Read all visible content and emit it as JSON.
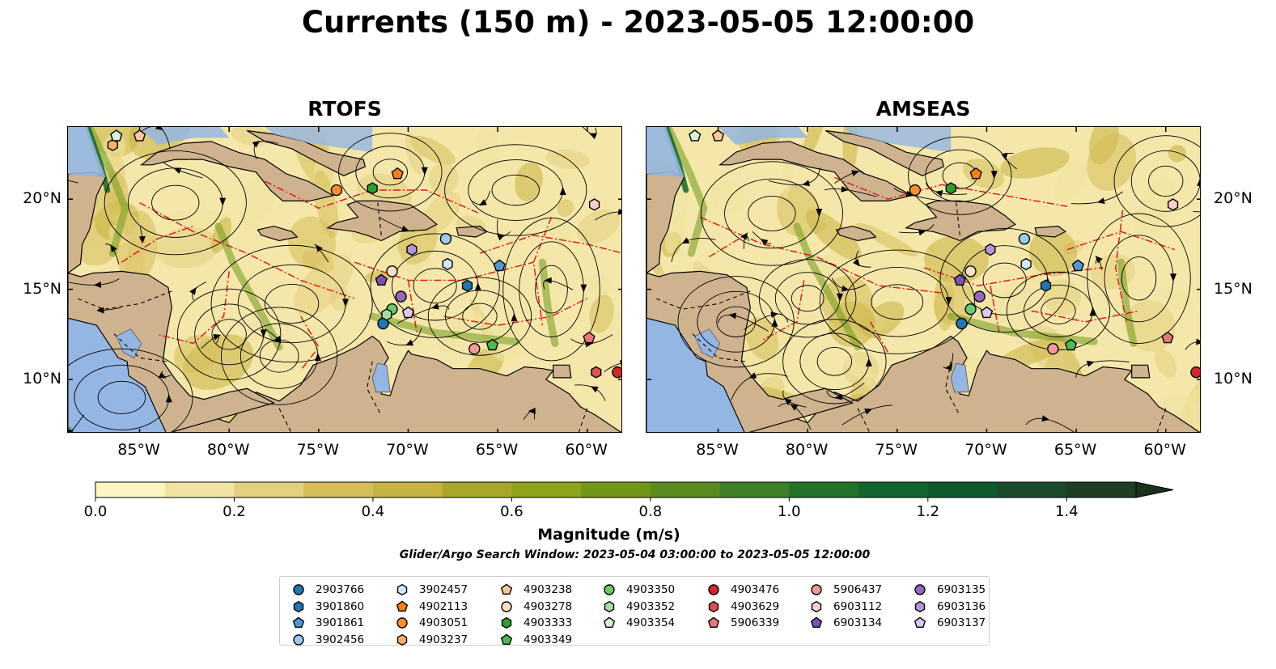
{
  "title": "Currents (150 m) - 2023-05-05 12:00:00",
  "panels": [
    {
      "name": "RTOFS"
    },
    {
      "name": "AMSEAS"
    }
  ],
  "axes": {
    "lon_ticks": [
      "85°W",
      "80°W",
      "75°W",
      "70°W",
      "65°W",
      "60°W"
    ],
    "lat_ticks": [
      "20°N",
      "15°N",
      "10°N"
    ],
    "lon_range": [
      -89,
      -58
    ],
    "lat_range": [
      7,
      24
    ]
  },
  "colorbar": {
    "label": "Magnitude (m/s)",
    "ticks": [
      "0.0",
      "0.2",
      "0.4",
      "0.6",
      "0.8",
      "1.0",
      "1.2",
      "1.4"
    ],
    "range": [
      0,
      1.5
    ],
    "extend": "max",
    "colors": [
      "#fdf6c3",
      "#f1e3a1",
      "#e3cf7d",
      "#d5bd5a",
      "#c6b341",
      "#a9a72b",
      "#8ea31b",
      "#72961a",
      "#5b8a1f",
      "#3f7f25",
      "#237229",
      "#13652e",
      "#0f5a2c",
      "#1a4a2a",
      "#1f3c24",
      "#1c2e1d"
    ]
  },
  "search_window": "Glider/Argo Search Window: 2023-05-04 03:00:00 to 2023-05-05 12:00:00",
  "legend": [
    {
      "id": "2903766",
      "color": "#1f77b4",
      "marker": "circle"
    },
    {
      "id": "3901860",
      "color": "#1f77b4",
      "marker": "hexagon"
    },
    {
      "id": "3901861",
      "color": "#4f9ad6",
      "marker": "pentagon"
    },
    {
      "id": "3902456",
      "color": "#9ecae9",
      "marker": "circle"
    },
    {
      "id": "3902457",
      "color": "#cfe8f7",
      "marker": "hexagon"
    },
    {
      "id": "4902113",
      "color": "#ff7f0e",
      "marker": "pentagon"
    },
    {
      "id": "4903051",
      "color": "#ff8c2e",
      "marker": "circle"
    },
    {
      "id": "4903237",
      "color": "#ffae66",
      "marker": "hexagon"
    },
    {
      "id": "4903238",
      "color": "#ffc898",
      "marker": "pentagon"
    },
    {
      "id": "4903278",
      "color": "#ffe0c2",
      "marker": "circle"
    },
    {
      "id": "4903333",
      "color": "#2ca02c",
      "marker": "hexagon"
    },
    {
      "id": "4903349",
      "color": "#4cbd4c",
      "marker": "pentagon"
    },
    {
      "id": "4903350",
      "color": "#6ccb6c",
      "marker": "circle"
    },
    {
      "id": "4903352",
      "color": "#a2e0a2",
      "marker": "hexagon"
    },
    {
      "id": "4903354",
      "color": "#d4f5d4",
      "marker": "pentagon"
    },
    {
      "id": "4903476",
      "color": "#d62728",
      "marker": "circle"
    },
    {
      "id": "4903629",
      "color": "#e05050",
      "marker": "hexagon"
    },
    {
      "id": "5906339",
      "color": "#e87878",
      "marker": "pentagon"
    },
    {
      "id": "5906437",
      "color": "#f29a9a",
      "marker": "circle"
    },
    {
      "id": "6903112",
      "color": "#fbd0d0",
      "marker": "hexagon"
    },
    {
      "id": "6903134",
      "color": "#7b52ae",
      "marker": "pentagon"
    },
    {
      "id": "6903135",
      "color": "#9467bd",
      "marker": "circle"
    },
    {
      "id": "6903136",
      "color": "#b494d6",
      "marker": "hexagon"
    },
    {
      "id": "6903137",
      "color": "#dbc7ef",
      "marker": "pentagon"
    }
  ],
  "chart_data": {
    "type": "heatmap",
    "title": "Currents (150 m) - 2023-05-05 12:00:00",
    "subplots": [
      "RTOFS",
      "AMSEAS"
    ],
    "variable": "Magnitude (m/s)",
    "xlabel": "",
    "ylabel": "",
    "xlim": [
      -89,
      -58
    ],
    "ylim": [
      7,
      24
    ],
    "floats": {
      "RTOFS": [
        {
          "id": "2903766",
          "lon": -71.4,
          "lat": 13.1
        },
        {
          "id": "3901860",
          "lon": -66.7,
          "lat": 15.2
        },
        {
          "id": "3901861",
          "lon": -64.9,
          "lat": 16.3
        },
        {
          "id": "3902456",
          "lon": -67.9,
          "lat": 17.8
        },
        {
          "id": "3902457",
          "lon": -67.8,
          "lat": 16.4
        },
        {
          "id": "4902113",
          "lon": -70.6,
          "lat": 21.4
        },
        {
          "id": "4903051",
          "lon": -74.0,
          "lat": 20.5
        },
        {
          "id": "4903237",
          "lon": -86.5,
          "lat": 23.0
        },
        {
          "id": "4903238",
          "lon": -85.0,
          "lat": 23.5
        },
        {
          "id": "4903278",
          "lon": -70.9,
          "lat": 16.0
        },
        {
          "id": "4903333",
          "lon": -72.0,
          "lat": 20.6
        },
        {
          "id": "4903349",
          "lon": -65.3,
          "lat": 11.9
        },
        {
          "id": "4903350",
          "lon": -70.9,
          "lat": 13.9
        },
        {
          "id": "4903352",
          "lon": -71.2,
          "lat": 13.6
        },
        {
          "id": "4903354",
          "lon": -86.3,
          "lat": 23.5
        },
        {
          "id": "4903476",
          "lon": -58.3,
          "lat": 10.4
        },
        {
          "id": "4903629",
          "lon": -59.5,
          "lat": 10.4
        },
        {
          "id": "5906339",
          "lon": -59.9,
          "lat": 12.3
        },
        {
          "id": "5906437",
          "lon": -66.3,
          "lat": 11.7
        },
        {
          "id": "6903112",
          "lon": -59.6,
          "lat": 19.7
        },
        {
          "id": "6903134",
          "lon": -71.5,
          "lat": 15.5
        },
        {
          "id": "6903135",
          "lon": -70.4,
          "lat": 14.6
        },
        {
          "id": "6903136",
          "lon": -69.8,
          "lat": 17.2
        },
        {
          "id": "6903137",
          "lon": -70.0,
          "lat": 13.7
        }
      ],
      "AMSEAS": [
        {
          "id": "2903766",
          "lon": -71.4,
          "lat": 13.1
        },
        {
          "id": "3901860",
          "lon": -66.7,
          "lat": 15.2
        },
        {
          "id": "3901861",
          "lon": -64.9,
          "lat": 16.3
        },
        {
          "id": "3902456",
          "lon": -67.9,
          "lat": 17.8
        },
        {
          "id": "3902457",
          "lon": -67.8,
          "lat": 16.4
        },
        {
          "id": "4902113",
          "lon": -70.6,
          "lat": 21.4
        },
        {
          "id": "4903051",
          "lon": -74.0,
          "lat": 20.5
        },
        {
          "id": "4903238",
          "lon": -85.0,
          "lat": 23.5
        },
        {
          "id": "4903278",
          "lon": -70.9,
          "lat": 16.0
        },
        {
          "id": "4903333",
          "lon": -72.0,
          "lat": 20.6
        },
        {
          "id": "4903349",
          "lon": -65.3,
          "lat": 11.9
        },
        {
          "id": "4903350",
          "lon": -70.9,
          "lat": 13.9
        },
        {
          "id": "4903354",
          "lon": -86.3,
          "lat": 23.5
        },
        {
          "id": "4903476",
          "lon": -58.3,
          "lat": 10.4
        },
        {
          "id": "5906339",
          "lon": -59.9,
          "lat": 12.3
        },
        {
          "id": "5906437",
          "lon": -66.3,
          "lat": 11.7
        },
        {
          "id": "6903112",
          "lon": -59.6,
          "lat": 19.7
        },
        {
          "id": "6903134",
          "lon": -71.5,
          "lat": 15.5
        },
        {
          "id": "6903135",
          "lon": -70.4,
          "lat": 14.6
        },
        {
          "id": "6903136",
          "lon": -69.8,
          "lat": 17.2
        },
        {
          "id": "6903137",
          "lon": -70.0,
          "lat": 13.7
        }
      ]
    }
  }
}
